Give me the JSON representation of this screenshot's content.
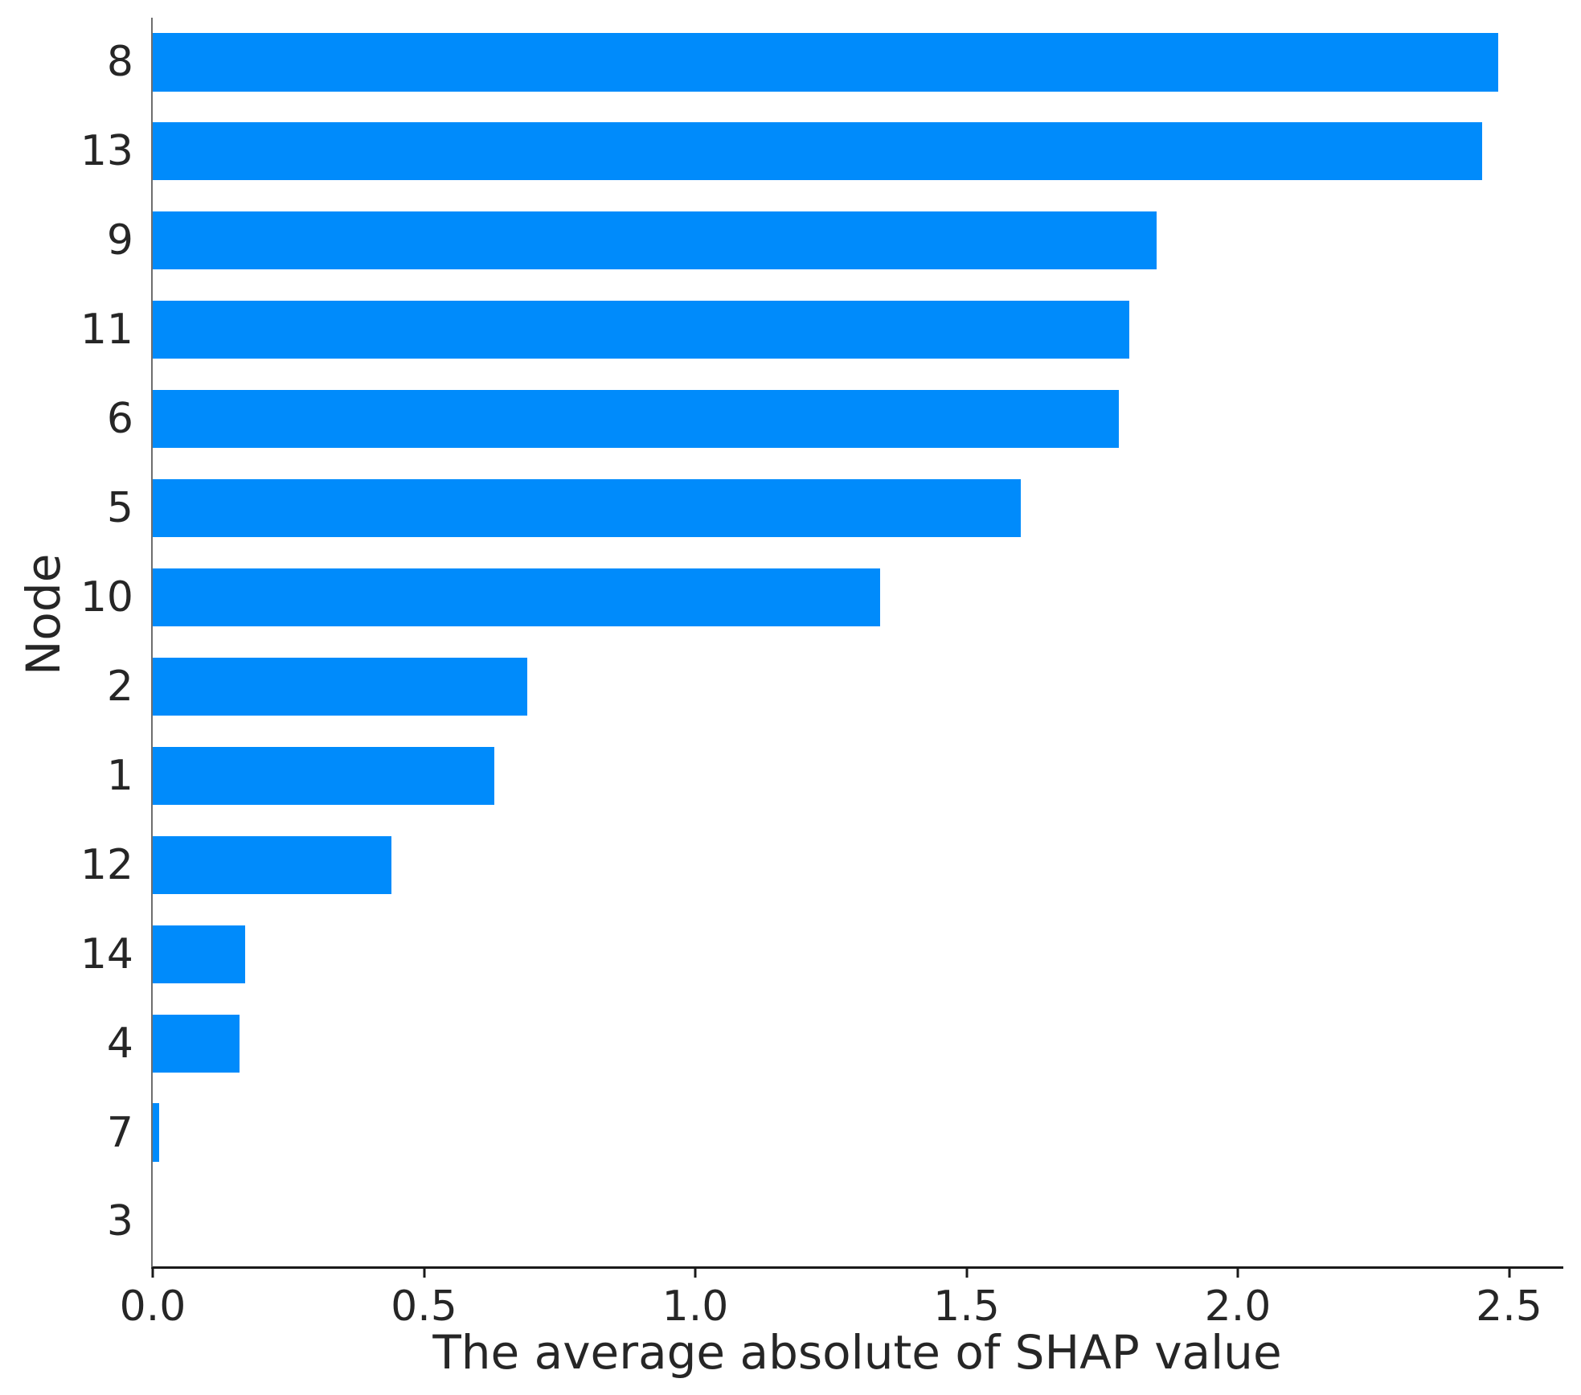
{
  "figure": {
    "background_color": "#ffffff",
    "text_color": "#262626",
    "spine_left_color": "#6e6e6e",
    "spine_bottom_color": "#1a1a1a"
  },
  "chart_data": {
    "type": "bar",
    "orientation": "horizontal",
    "title": "",
    "xlabel": "The average absolute of SHAP value",
    "ylabel": "Node",
    "categories": [
      "8",
      "13",
      "9",
      "11",
      "6",
      "5",
      "10",
      "2",
      "1",
      "12",
      "14",
      "4",
      "7",
      "3"
    ],
    "values": [
      2.48,
      2.45,
      1.85,
      1.8,
      1.78,
      1.6,
      1.34,
      0.69,
      0.63,
      0.44,
      0.17,
      0.16,
      0.012,
      0.0
    ],
    "xlim": [
      0,
      2.6
    ],
    "xticks": [
      0.0,
      0.5,
      1.0,
      1.5,
      2.0,
      2.5
    ],
    "xtick_labels": [
      "0.0",
      "0.5",
      "1.0",
      "1.5",
      "2.0",
      "2.5"
    ],
    "bar_color": "#008bfb",
    "grid": false,
    "legend": null
  }
}
